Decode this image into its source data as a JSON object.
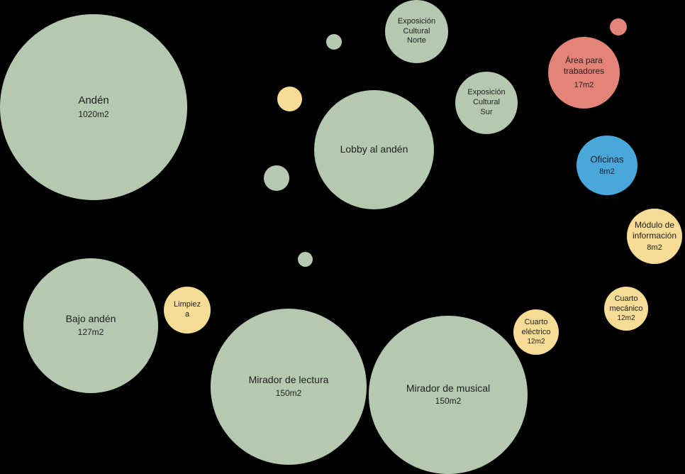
{
  "spaces": {
    "anden": {
      "name": "Andén",
      "area": "1020m2"
    },
    "lobby": {
      "name": "Lobby al andén"
    },
    "expo_norte": {
      "name": "Exposición\nCultural\nNorte"
    },
    "expo_sur": {
      "name": "Exposición\nCultural\nSur"
    },
    "area_trabajadores": {
      "name": "Área para\ntrabadores",
      "area": "17m2"
    },
    "oficinas": {
      "name": "Oficinas",
      "area": "8m2"
    },
    "modulo_info": {
      "name": "Módulo de\ninformación",
      "area": "8m2"
    },
    "cuarto_mecanico": {
      "name": "Cuarto\nmecánico",
      "area": "12m2"
    },
    "cuarto_electrico": {
      "name": "Cuarto\neléctrico",
      "area": "12m2"
    },
    "bajo_anden": {
      "name": "Bajo andén",
      "area": "127m2"
    },
    "limpieza": {
      "name": "Limpiez\na"
    },
    "mirador_lectura": {
      "name": "Mirador de lectura",
      "area": "150m2"
    },
    "mirador_musical": {
      "name": "Mirador de musical",
      "area": "150m2"
    }
  },
  "colors": {
    "background": "#000000",
    "green": "#b5c9b0",
    "yellow": "#f7dc95",
    "red": "#e48479",
    "blue": "#49a7dc"
  }
}
